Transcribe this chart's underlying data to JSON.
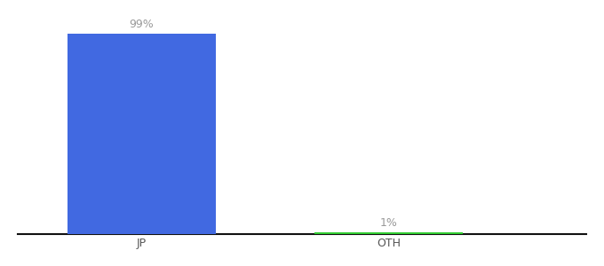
{
  "categories": [
    "JP",
    "OTH"
  ],
  "values": [
    99,
    1
  ],
  "bar_colors": [
    "#4169e1",
    "#32cd32"
  ],
  "labels": [
    "99%",
    "1%"
  ],
  "ylim": [
    0,
    105
  ],
  "bar_width": 0.6,
  "label_color": "#999999",
  "label_fontsize": 9,
  "tick_fontsize": 9,
  "tick_color": "#555555",
  "background_color": "#ffffff",
  "axis_line_color": "#111111",
  "x_positions": [
    0,
    1
  ],
  "xlim": [
    -0.5,
    1.8
  ]
}
